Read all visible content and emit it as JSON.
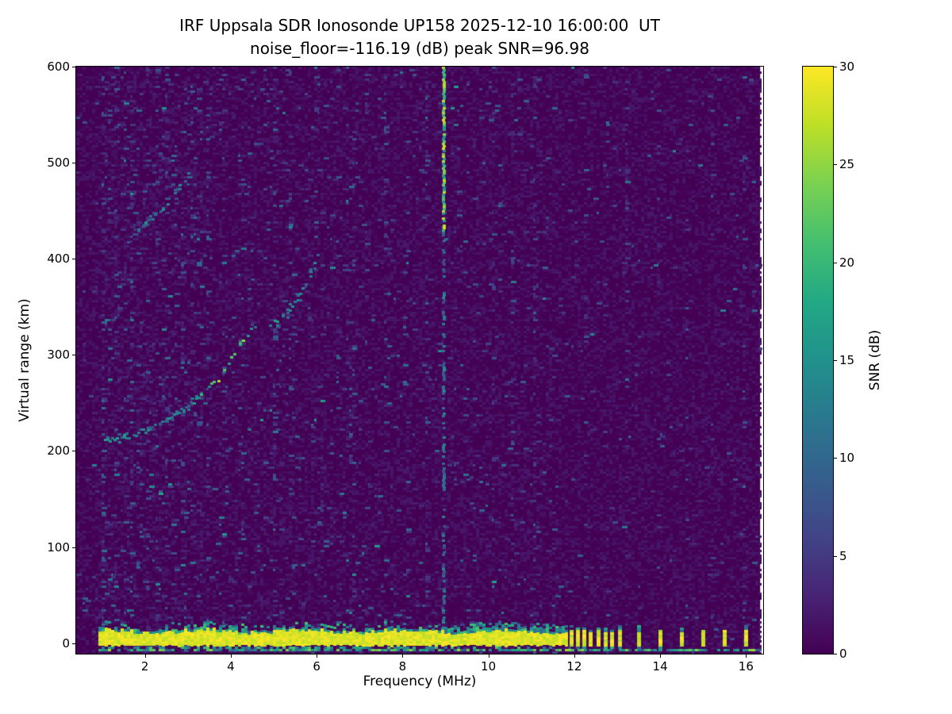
{
  "chart_data": {
    "type": "heatmap",
    "title": "IRF Uppsala SDR Ionosonde UP158 2025-12-10 16:00:00  UT",
    "subtitle": "noise_floor=-116.19 (dB) peak SNR=96.98",
    "xlabel": "Frequency (MHz)",
    "ylabel": "Virtual range (km)",
    "xlim": [
      0.4,
      16.4
    ],
    "ylim": [
      -11,
      600
    ],
    "xticks": [
      2,
      4,
      6,
      8,
      10,
      12,
      14,
      16
    ],
    "yticks": [
      0,
      100,
      200,
      300,
      400,
      500,
      600
    ],
    "noise_floor_db": -116.19,
    "peak_snr_db": 96.98,
    "grid": false,
    "colorbar": {
      "label": "SNR (dB)",
      "min": 0,
      "max": 30,
      "ticks": [
        0,
        5,
        10,
        15,
        20,
        25,
        30
      ],
      "colormap": "viridis",
      "stops": [
        [
          0.0,
          "#440154"
        ],
        [
          0.1,
          "#482475"
        ],
        [
          0.2,
          "#414487"
        ],
        [
          0.3,
          "#355f8d"
        ],
        [
          0.4,
          "#2a788e"
        ],
        [
          0.5,
          "#21918c"
        ],
        [
          0.6,
          "#22a884"
        ],
        [
          0.7,
          "#44bf70"
        ],
        [
          0.8,
          "#7ad151"
        ],
        [
          0.9,
          "#bddf26"
        ],
        [
          1.0,
          "#fde725"
        ]
      ]
    },
    "features": {
      "data_freq_range_mhz": [
        0.4,
        16.33
      ],
      "background_snr_db": [
        0,
        2
      ],
      "ground_pulse_band": {
        "freq_range_mhz": [
          0.92,
          11.8
        ],
        "range_km": [
          -2,
          12
        ],
        "snr_db": 30
      },
      "ground_fringe": {
        "range_km_above_band": 10,
        "snr_db": [
          8,
          22
        ],
        "denser_freq_range_mhz": [
          9.3,
          11.8
        ]
      },
      "bottom_echo_line": {
        "freq_range_mhz": [
          0.92,
          16.3
        ],
        "range_km": -7,
        "snr_db": [
          8,
          26
        ]
      },
      "discrete_pulses_mhz": [
        11.93,
        12.07,
        12.22,
        12.38,
        12.55,
        12.72,
        12.88,
        13.05,
        13.5,
        14.0,
        14.5,
        15.0,
        15.5,
        16.0
      ],
      "echo_traces": [
        {
          "name": "first-hop-flat",
          "points_mhz_km": [
            [
              1.0,
              211
            ],
            [
              1.5,
              215
            ],
            [
              2.0,
              222
            ],
            [
              2.5,
              232
            ],
            [
              3.0,
              247
            ],
            [
              3.3,
              260
            ]
          ],
          "snr_db": [
            8,
            18
          ]
        },
        {
          "name": "first-hop-steep",
          "points_mhz_km": [
            [
              3.3,
              262
            ],
            [
              3.7,
              275
            ],
            [
              4.0,
              297
            ],
            [
              4.2,
              312
            ],
            [
              4.45,
              330
            ]
          ],
          "snr_db": [
            12,
            27
          ]
        },
        {
          "name": "f-trace-upper",
          "points_mhz_km": [
            [
              4.9,
              330
            ],
            [
              5.3,
              345
            ],
            [
              5.6,
              362
            ],
            [
              5.85,
              385
            ],
            [
              6.0,
              405
            ]
          ],
          "snr_db": [
            8,
            17
          ]
        },
        {
          "name": "second-hop-arc",
          "points_mhz_km": [
            [
              1.6,
              420
            ],
            [
              2.0,
              438
            ],
            [
              2.4,
              452
            ],
            [
              2.8,
              475
            ],
            [
              3.05,
              492
            ]
          ],
          "snr_db": [
            6,
            15
          ]
        }
      ],
      "rfi_streak": {
        "freq_mhz": 8.95,
        "range_km": [
          0,
          600
        ],
        "bright_range_km": [
          430,
          600
        ],
        "snr_db": [
          8,
          28
        ]
      },
      "noise_stripes_mhz": [
        1.0,
        1.15,
        1.3,
        1.5,
        1.65,
        1.85,
        2.05,
        2.25,
        2.45,
        2.65,
        2.85,
        3.05,
        3.45,
        3.8,
        4.2,
        4.65,
        5.0,
        5.35,
        5.9,
        6.45,
        6.8,
        7.15,
        7.55,
        8.05,
        8.55,
        9.5,
        10.1,
        10.55,
        11.05,
        11.5,
        12.25,
        12.7,
        13.2,
        13.9,
        14.6,
        15.2,
        15.9
      ]
    }
  }
}
